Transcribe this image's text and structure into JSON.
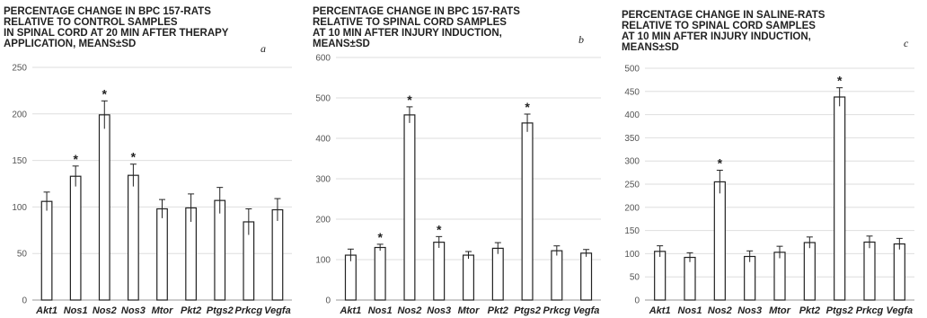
{
  "chart_data": [
    {
      "type": "bar",
      "title_lines": [
        "PERCENTAGE CHANGE IN BPC 157-RATS",
        "RELATIVE TO CONTROL SAMPLES",
        "IN SPINAL CORD  AT 20 MIN AFTER THERAPY",
        "APPLICATION, MEANS±SD"
      ],
      "panel_label": "a",
      "ylim": [
        0,
        250
      ],
      "yticks": [
        0,
        50,
        100,
        150,
        200,
        250
      ],
      "grid": true,
      "categories": [
        "Akt1",
        "Nos1",
        "Nos2",
        "Nos3",
        "Mtor",
        "Pkt2",
        "Ptgs2",
        "Prkcg",
        "Vegfa"
      ],
      "values": [
        106,
        133,
        199,
        134,
        98,
        99,
        107,
        84,
        97
      ],
      "errors": [
        10,
        11,
        15,
        12,
        10,
        15,
        14,
        14,
        12
      ],
      "significant": [
        false,
        true,
        true,
        true,
        false,
        false,
        false,
        false,
        false
      ],
      "marker": "*"
    },
    {
      "type": "bar",
      "title_lines": [
        "PERCENTAGE CHANGE IN BPC 157-RATS",
        "RELATIVE TO SPINAL CORD SAMPLES",
        "AT 10 MIN AFTER INJURY INDUCTION,",
        "MEANS±SD"
      ],
      "panel_label": "b",
      "ylim": [
        0,
        600
      ],
      "yticks": [
        0,
        100,
        200,
        300,
        400,
        500,
        600
      ],
      "grid": true,
      "categories": [
        "Akt1",
        "Nos1",
        "Nos2",
        "Nos3",
        "Mtor",
        "Pkt2",
        "Ptgs2",
        "Prkcg",
        "Vegfa"
      ],
      "values": [
        111,
        130,
        458,
        143,
        111,
        128,
        438,
        122,
        116
      ],
      "errors": [
        15,
        8,
        20,
        14,
        9,
        14,
        22,
        12,
        9
      ],
      "significant": [
        false,
        true,
        true,
        true,
        false,
        false,
        true,
        false,
        false
      ],
      "marker": "*"
    },
    {
      "type": "bar",
      "title_lines": [
        "PERCENTAGE CHANGE IN SALINE-RATS",
        "RELATIVE TO SPINAL CORD SAMPLES",
        "AT 10 MIN AFTER INJURY INDUCTION,",
        "MEANS±SD"
      ],
      "panel_label": "c",
      "ylim": [
        0,
        500
      ],
      "yticks": [
        0,
        50,
        100,
        150,
        200,
        250,
        300,
        350,
        400,
        450,
        500
      ],
      "grid": true,
      "categories": [
        "Akt1",
        "Nos1",
        "Nos2",
        "Nos3",
        "Mtor",
        "Pkt2",
        "Ptgs2",
        "Prkcg",
        "Vegfa"
      ],
      "values": [
        105,
        92,
        255,
        94,
        103,
        124,
        438,
        125,
        121
      ],
      "errors": [
        12,
        10,
        25,
        12,
        13,
        12,
        20,
        13,
        12
      ],
      "significant": [
        false,
        false,
        true,
        false,
        false,
        false,
        true,
        false,
        false
      ],
      "marker": "*"
    }
  ]
}
